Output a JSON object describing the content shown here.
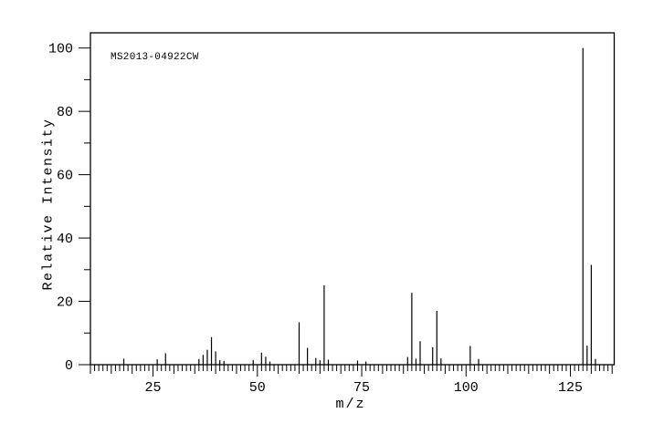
{
  "figure": {
    "background_color": "#ffffff",
    "line_color": "#000000"
  },
  "chart_data": {
    "type": "bar",
    "subtype": "mass-spectrum-stick-plot",
    "annotation": "MS2013-04922CW",
    "xlabel": "m/z",
    "ylabel": "Relative Intensity",
    "xlim": [
      10,
      135.5
    ],
    "ylim": [
      0,
      104.8
    ],
    "x_tick_labels": [
      25,
      50,
      75,
      100,
      125
    ],
    "x_medium_tick_step": 5,
    "x_minor_tick_step": 1,
    "y_tick_labels": [
      0,
      20,
      40,
      60,
      80,
      100
    ],
    "y_minor_tick_step": 10,
    "grid": false,
    "legend": false,
    "peaks": [
      {
        "mz": 18,
        "intensity": 1.9
      },
      {
        "mz": 26,
        "intensity": 1.7
      },
      {
        "mz": 28,
        "intensity": 3.6
      },
      {
        "mz": 36,
        "intensity": 1.8
      },
      {
        "mz": 37,
        "intensity": 3.1
      },
      {
        "mz": 38,
        "intensity": 4.7
      },
      {
        "mz": 39,
        "intensity": 8.7
      },
      {
        "mz": 40,
        "intensity": 4.2
      },
      {
        "mz": 41,
        "intensity": 1.4
      },
      {
        "mz": 42,
        "intensity": 1.2
      },
      {
        "mz": 49,
        "intensity": 1.5
      },
      {
        "mz": 51,
        "intensity": 3.8
      },
      {
        "mz": 52,
        "intensity": 2.5
      },
      {
        "mz": 53,
        "intensity": 1.0
      },
      {
        "mz": 60,
        "intensity": 13.4
      },
      {
        "mz": 62,
        "intensity": 5.3
      },
      {
        "mz": 64,
        "intensity": 2.1
      },
      {
        "mz": 65,
        "intensity": 1.4
      },
      {
        "mz": 66,
        "intensity": 25.1
      },
      {
        "mz": 67,
        "intensity": 1.6
      },
      {
        "mz": 74,
        "intensity": 1.3
      },
      {
        "mz": 76,
        "intensity": 1.0
      },
      {
        "mz": 86,
        "intensity": 2.4
      },
      {
        "mz": 87,
        "intensity": 22.7
      },
      {
        "mz": 88,
        "intensity": 1.9
      },
      {
        "mz": 89,
        "intensity": 7.4
      },
      {
        "mz": 92,
        "intensity": 5.5
      },
      {
        "mz": 93,
        "intensity": 17.0
      },
      {
        "mz": 94,
        "intensity": 2.0
      },
      {
        "mz": 101,
        "intensity": 5.9
      },
      {
        "mz": 103,
        "intensity": 1.8
      },
      {
        "mz": 128,
        "intensity": 100.0
      },
      {
        "mz": 129,
        "intensity": 6.0
      },
      {
        "mz": 130,
        "intensity": 31.5
      },
      {
        "mz": 131,
        "intensity": 1.8
      }
    ]
  }
}
